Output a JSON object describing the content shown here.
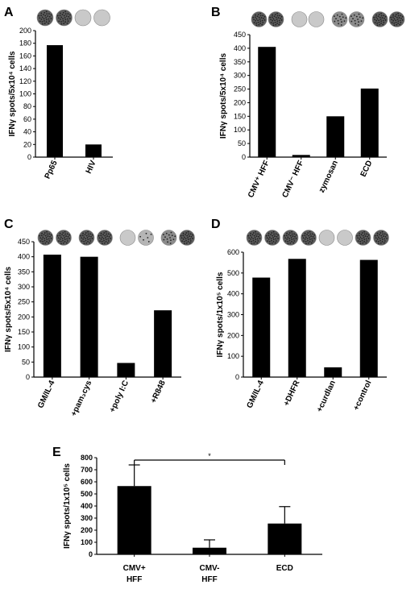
{
  "chart_data": [
    {
      "panel": "A",
      "type": "bar",
      "ylabel": "IFNγ spots/5x10⁴ cells",
      "ylim": [
        0,
        200
      ],
      "yticks": [
        0,
        20,
        40,
        60,
        80,
        100,
        120,
        140,
        160,
        180,
        200
      ],
      "categories": [
        "Pp65",
        "HIV"
      ],
      "values": [
        177,
        20
      ],
      "wells": [
        "dense",
        "dense",
        "clear",
        "clear"
      ]
    },
    {
      "panel": "B",
      "type": "bar",
      "ylabel": "IFNγ spots/5x10⁴ cells",
      "ylim": [
        0,
        450
      ],
      "yticks": [
        0,
        50,
        100,
        150,
        200,
        250,
        300,
        350,
        400,
        450
      ],
      "categories": [
        "CMV⁺ HFF",
        "CMV⁻ HFF",
        "zymosan",
        "ECD"
      ],
      "values": [
        405,
        8,
        150,
        252
      ],
      "wells": [
        "dense",
        "dense",
        "clear",
        "clear",
        "medium",
        "medium",
        "dense",
        "dense"
      ]
    },
    {
      "panel": "C",
      "type": "bar",
      "ylabel": "IFNγ spots/5x10⁴ cells",
      "ylim": [
        0,
        450
      ],
      "yticks": [
        0,
        50,
        100,
        150,
        200,
        250,
        300,
        350,
        400,
        450
      ],
      "categories": [
        "GM/IL-4",
        "+pam₃cys",
        "+poly I:C",
        "+R848"
      ],
      "values": [
        407,
        400,
        47,
        222
      ],
      "wells": [
        "dense",
        "dense",
        "dense",
        "dense",
        "clear",
        "light",
        "medium",
        "dense"
      ]
    },
    {
      "panel": "D",
      "type": "bar",
      "ylabel": "IFNγ spots/1x10⁵ cells",
      "ylim": [
        0,
        600
      ],
      "yticks": [
        0,
        100,
        200,
        300,
        400,
        500,
        600
      ],
      "categories": [
        "GM/IL-4",
        "+DHFR",
        "+curdlan",
        "+control"
      ],
      "values": [
        478,
        568,
        47,
        563
      ],
      "wells": [
        "dense",
        "dense",
        "dense",
        "dense",
        "clear",
        "clear",
        "dense",
        "dense"
      ]
    },
    {
      "panel": "E",
      "type": "bar",
      "ylabel": "IFNγ spots/1x10⁵ cells",
      "ylim": [
        0,
        800
      ],
      "yticks": [
        0,
        100,
        200,
        300,
        400,
        500,
        600,
        700,
        800
      ],
      "categories": [
        "CMV+\nHFF",
        "CMV-\nHFF",
        "ECD"
      ],
      "values": [
        565,
        55,
        255
      ],
      "errors": [
        175,
        65,
        140
      ],
      "annotation": "*"
    }
  ]
}
